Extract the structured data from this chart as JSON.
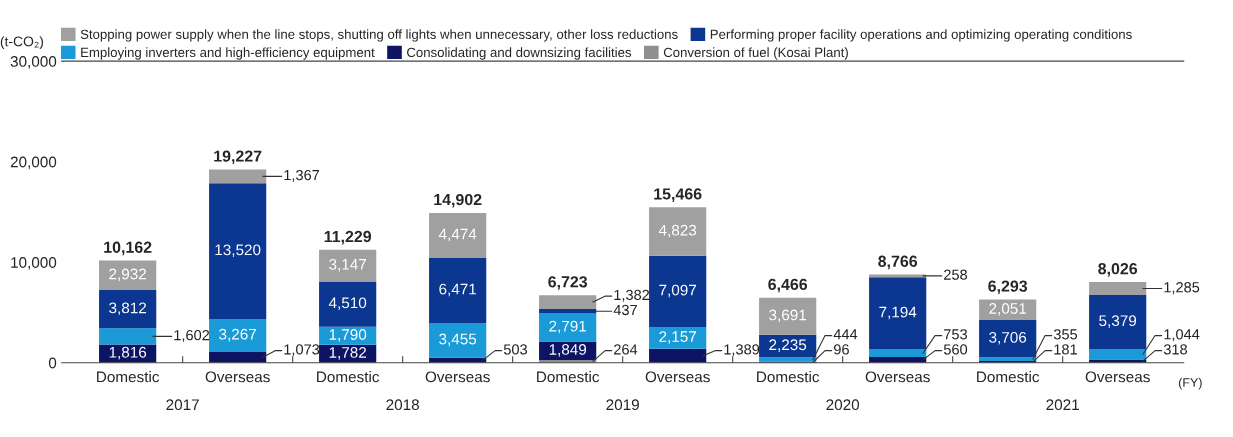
{
  "chart_data": {
    "type": "bar",
    "stacked": true,
    "categories": [
      "Domestic",
      "Overseas",
      "Domestic",
      "Overseas",
      "Domestic",
      "Overseas",
      "Domestic",
      "Overseas",
      "Domestic",
      "Overseas"
    ],
    "series": [
      {
        "name": "Conversion of fuel (Kosai Plant)",
        "color": "#8f8f8f",
        "values": [
          null,
          null,
          null,
          null,
          264,
          null,
          null,
          null,
          null,
          null
        ],
        "value_labels": [
          null,
          null,
          null,
          null,
          "264",
          null,
          null,
          null,
          null,
          null
        ]
      },
      {
        "name": "Consolidating and downsizing facilities",
        "color": "#0d1464",
        "values": [
          1816,
          1073,
          1782,
          503,
          1849,
          1389,
          96,
          560,
          181,
          318
        ],
        "value_labels": [
          "1,816",
          "1,073",
          "1,782",
          "503",
          "1,849",
          "1,389",
          "96",
          "560",
          "181",
          "318"
        ]
      },
      {
        "name": "Employing inverters and high-efficiency equipment",
        "color": "#1a9bd7",
        "values": [
          1602,
          3267,
          1790,
          3455,
          2791,
          2157,
          444,
          753,
          355,
          1044
        ],
        "value_labels": [
          "1,602",
          "3,267",
          "1,790",
          "3,455",
          "2,791",
          "2,157",
          "444",
          "753",
          "355",
          "1,044"
        ]
      },
      {
        "name": "Performing proper facility operations and optimizing operating conditions",
        "color": "#0b3791",
        "values": [
          3812,
          13520,
          4510,
          6471,
          437,
          7097,
          2235,
          7194,
          3706,
          5379
        ],
        "value_labels": [
          "3,812",
          "13,520",
          "4,510",
          "6,471",
          "437",
          "7,097",
          "2,235",
          "7,194",
          "3,706",
          "5,379"
        ]
      },
      {
        "name": "Stopping power supply when the line stops, shutting off lights when unnecessary, other loss reductions",
        "color": "#a0a0a0",
        "values": [
          2932,
          1367,
          3147,
          4474,
          1382,
          4823,
          3691,
          258,
          2051,
          1285
        ],
        "value_labels": [
          "2,932",
          "1,367",
          "3,147",
          "4,474",
          "1,382",
          "4,823",
          "3,691",
          "258",
          "2,051",
          "1,285"
        ]
      }
    ],
    "totals": [
      "10,162",
      "19,227",
      "11,229",
      "14,902",
      "6,723",
      "15,466",
      "6,466",
      "8,766",
      "6,293",
      "8,026"
    ],
    "ylabel": "(t-CO₂)",
    "ylim": [
      0,
      30000
    ],
    "yticks": [
      {
        "value": 0,
        "label": "0"
      },
      {
        "value": 10000,
        "label": "10,000"
      },
      {
        "value": 20000,
        "label": "20,000"
      },
      {
        "value": 30000,
        "label": "30,000"
      }
    ],
    "annotations": [
      "2017",
      "2018",
      "2019",
      "2020",
      "2021",
      "(FY)"
    ],
    "legend": "top",
    "grid": false
  }
}
